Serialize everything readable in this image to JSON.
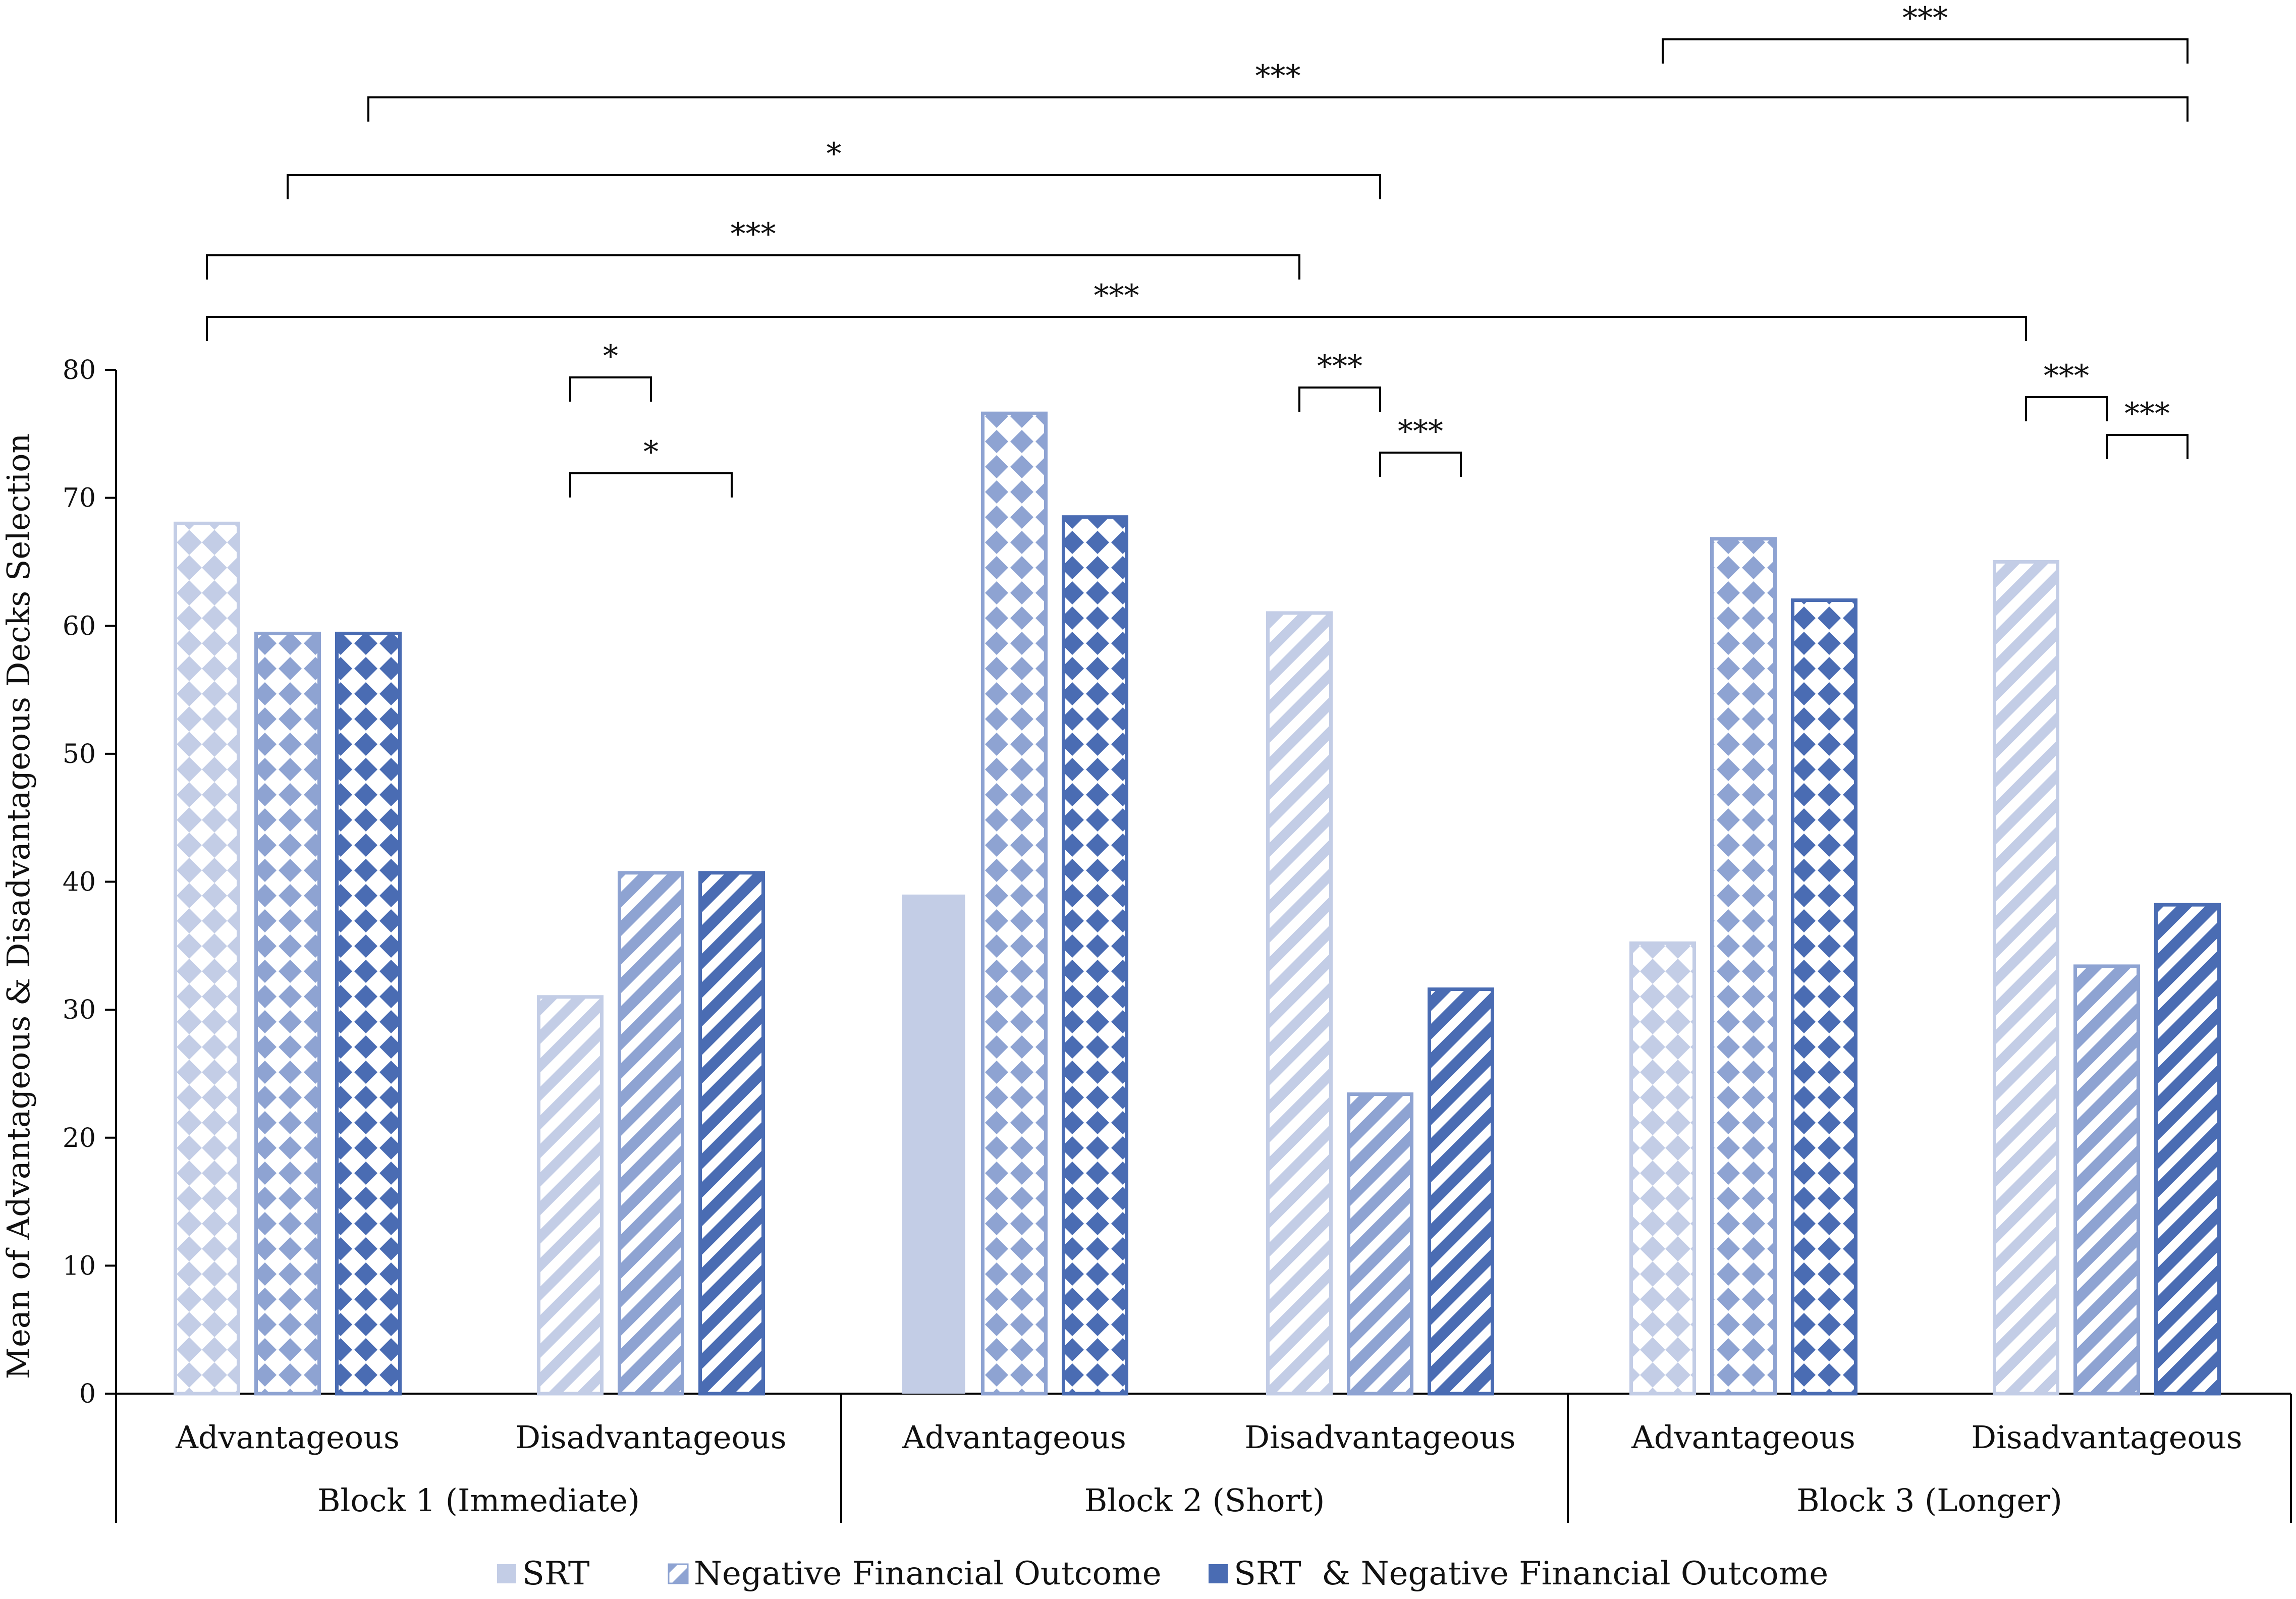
{
  "chart_data": {
    "type": "bar",
    "ylabel": "Mean of Advantageous & Disadvantageous Decks Selection",
    "ylim": [
      0,
      80
    ],
    "yticks": [
      "0",
      "10",
      "20",
      "30",
      "40",
      "50",
      "60",
      "70",
      "80"
    ],
    "groups": [
      {
        "label": "Block 1 (Immediate)",
        "categories": [
          "Advantageous",
          "Disadvantageous"
        ]
      },
      {
        "label": "Block 2 (Short)",
        "categories": [
          "Advantageous",
          "Disadvantageous"
        ]
      },
      {
        "label": "Block 3 (Longer)",
        "categories": [
          "Advantageous",
          "Disadvantageous"
        ]
      }
    ],
    "categories": [
      "Advantageous",
      "Disadvantageous",
      "Advantageous",
      "Disadvantageous",
      "Advantageous",
      "Disadvantageous"
    ],
    "series": [
      {
        "name": "SRT",
        "values": [
          68,
          31,
          39,
          61,
          35.2,
          65
        ]
      },
      {
        "name": "Negative Financial Outcome",
        "values": [
          59.4,
          40.7,
          76.6,
          23.4,
          66.8,
          33.4
        ]
      },
      {
        "name": "SRT  & Negative Financial Outcome",
        "values": [
          59.4,
          40.7,
          68.5,
          31.6,
          62,
          38.2
        ]
      }
    ],
    "significance": [
      {
        "label": "***",
        "from": [
          4,
          0
        ],
        "to": [
          5,
          2
        ],
        "level": 1
      },
      {
        "label": "***",
        "from": [
          0,
          2
        ],
        "to": [
          5,
          2
        ],
        "level": 2
      },
      {
        "label": "*",
        "from": [
          0,
          1
        ],
        "to": [
          3,
          1
        ],
        "level": 3
      },
      {
        "label": "***",
        "from": [
          0,
          0
        ],
        "to": [
          3,
          0
        ],
        "level": 4
      },
      {
        "label": "***",
        "from": [
          0,
          0
        ],
        "to": [
          5,
          0
        ],
        "level": 5
      },
      {
        "label": "*",
        "from": [
          1,
          0
        ],
        "to": [
          1,
          1
        ],
        "level": 6
      },
      {
        "label": "*",
        "from": [
          1,
          0
        ],
        "to": [
          1,
          2
        ],
        "level": 7
      },
      {
        "label": "***",
        "from": [
          3,
          0
        ],
        "to": [
          3,
          1
        ],
        "level": 6
      },
      {
        "label": "***",
        "from": [
          3,
          1
        ],
        "to": [
          3,
          2
        ],
        "level": 7
      },
      {
        "label": "***",
        "from": [
          5,
          0
        ],
        "to": [
          5,
          1
        ],
        "level": 6
      },
      {
        "label": "***",
        "from": [
          5,
          1
        ],
        "to": [
          5,
          2
        ],
        "level": 7
      }
    ],
    "legend_position": "bottom",
    "colors": {
      "light": "#c3cde6",
      "mid": "#8ea3d2",
      "dark": "#4a6cb3",
      "axis": "#000000"
    },
    "grid": false
  }
}
